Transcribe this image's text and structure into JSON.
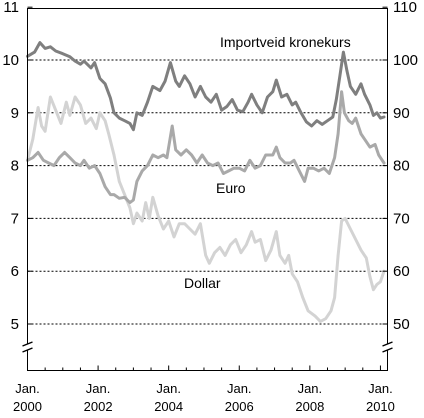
{
  "chart_data": {
    "type": "line",
    "x_unit": "year",
    "xlim": [
      2000.0,
      2010.2
    ],
    "x_ticks": [
      {
        "year": 2000,
        "line1": "Jan.",
        "line2": "2000"
      },
      {
        "year": 2002,
        "line1": "Jan.",
        "line2": "2002"
      },
      {
        "year": 2004,
        "line1": "Jan.",
        "line2": "2004"
      },
      {
        "year": 2006,
        "line1": "Jan.",
        "line2": "2006"
      },
      {
        "year": 2008,
        "line1": "Jan.",
        "line2": "2008"
      },
      {
        "year": 2010,
        "line1": "Jan.",
        "line2": "2010"
      }
    ],
    "y_left": {
      "ticks": [
        5,
        6,
        7,
        8,
        9,
        10,
        11
      ],
      "ylim": [
        5,
        11
      ]
    },
    "y_right": {
      "ticks": [
        50,
        60,
        70,
        80,
        90,
        100,
        110
      ],
      "ylim": [
        50,
        110
      ]
    },
    "grid_values": [
      5,
      6,
      7,
      8,
      9,
      10
    ],
    "axis_break": true,
    "series": [
      {
        "name": "Importveid kronekurs",
        "axis": "right",
        "color": "#7f7f7f",
        "points": [
          [
            2000.0,
            100.7
          ],
          [
            2000.2,
            101.5
          ],
          [
            2000.35,
            103.3
          ],
          [
            2000.5,
            102.2
          ],
          [
            2000.65,
            102.5
          ],
          [
            2000.8,
            101.7
          ],
          [
            2001.0,
            101.2
          ],
          [
            2001.2,
            100.6
          ],
          [
            2001.35,
            99.8
          ],
          [
            2001.5,
            99.2
          ],
          [
            2001.6,
            99.8
          ],
          [
            2001.8,
            98.5
          ],
          [
            2001.9,
            99.5
          ],
          [
            2002.05,
            96.5
          ],
          [
            2002.2,
            95.5
          ],
          [
            2002.35,
            92.8
          ],
          [
            2002.45,
            90.0
          ],
          [
            2002.6,
            89.0
          ],
          [
            2002.75,
            88.5
          ],
          [
            2002.9,
            88.0
          ],
          [
            2003.0,
            86.8
          ],
          [
            2003.1,
            90.0
          ],
          [
            2003.25,
            89.5
          ],
          [
            2003.4,
            92.0
          ],
          [
            2003.55,
            95.0
          ],
          [
            2003.75,
            94.2
          ],
          [
            2003.9,
            96.0
          ],
          [
            2004.05,
            99.5
          ],
          [
            2004.2,
            96.0
          ],
          [
            2004.3,
            95.0
          ],
          [
            2004.45,
            97.0
          ],
          [
            2004.6,
            95.5
          ],
          [
            2004.75,
            93.0
          ],
          [
            2004.9,
            95.0
          ],
          [
            2005.05,
            93.0
          ],
          [
            2005.2,
            92.0
          ],
          [
            2005.35,
            93.5
          ],
          [
            2005.5,
            90.5
          ],
          [
            2005.65,
            91.2
          ],
          [
            2005.8,
            92.5
          ],
          [
            2005.95,
            90.5
          ],
          [
            2006.1,
            90.2
          ],
          [
            2006.25,
            92.0
          ],
          [
            2006.35,
            93.5
          ],
          [
            2006.5,
            91.5
          ],
          [
            2006.65,
            90.0
          ],
          [
            2006.8,
            93.0
          ],
          [
            2006.95,
            94.0
          ],
          [
            2007.05,
            96.2
          ],
          [
            2007.2,
            93.0
          ],
          [
            2007.35,
            93.5
          ],
          [
            2007.5,
            91.5
          ],
          [
            2007.6,
            92.0
          ],
          [
            2007.75,
            90.0
          ],
          [
            2007.9,
            88.3
          ],
          [
            2008.05,
            87.5
          ],
          [
            2008.2,
            88.5
          ],
          [
            2008.35,
            87.8
          ],
          [
            2008.5,
            88.5
          ],
          [
            2008.65,
            89.2
          ],
          [
            2008.75,
            92.5
          ],
          [
            2008.85,
            97.0
          ],
          [
            2008.95,
            101.5
          ],
          [
            2009.05,
            98.0
          ],
          [
            2009.15,
            95.0
          ],
          [
            2009.3,
            93.5
          ],
          [
            2009.45,
            95.5
          ],
          [
            2009.55,
            93.5
          ],
          [
            2009.7,
            91.5
          ],
          [
            2009.8,
            89.5
          ],
          [
            2009.9,
            90.0
          ],
          [
            2010.0,
            89.0
          ],
          [
            2010.1,
            89.2
          ]
        ]
      },
      {
        "name": "Euro",
        "axis": "left",
        "color": "#a9a9a9",
        "points": [
          [
            2000.0,
            8.1
          ],
          [
            2000.15,
            8.15
          ],
          [
            2000.3,
            8.25
          ],
          [
            2000.45,
            8.1
          ],
          [
            2000.6,
            8.05
          ],
          [
            2000.75,
            8.0
          ],
          [
            2000.9,
            8.15
          ],
          [
            2001.05,
            8.25
          ],
          [
            2001.2,
            8.15
          ],
          [
            2001.35,
            8.05
          ],
          [
            2001.5,
            8.0
          ],
          [
            2001.6,
            8.1
          ],
          [
            2001.75,
            7.95
          ],
          [
            2001.9,
            8.0
          ],
          [
            2002.05,
            7.85
          ],
          [
            2002.2,
            7.6
          ],
          [
            2002.35,
            7.45
          ],
          [
            2002.45,
            7.45
          ],
          [
            2002.6,
            7.38
          ],
          [
            2002.75,
            7.4
          ],
          [
            2002.9,
            7.3
          ],
          [
            2003.0,
            7.35
          ],
          [
            2003.1,
            7.7
          ],
          [
            2003.25,
            7.9
          ],
          [
            2003.4,
            8.0
          ],
          [
            2003.55,
            8.2
          ],
          [
            2003.7,
            8.15
          ],
          [
            2003.85,
            8.2
          ],
          [
            2003.95,
            8.15
          ],
          [
            2004.1,
            8.75
          ],
          [
            2004.2,
            8.3
          ],
          [
            2004.35,
            8.2
          ],
          [
            2004.5,
            8.3
          ],
          [
            2004.65,
            8.2
          ],
          [
            2004.8,
            8.05
          ],
          [
            2004.95,
            8.2
          ],
          [
            2005.1,
            8.05
          ],
          [
            2005.25,
            8.0
          ],
          [
            2005.4,
            8.05
          ],
          [
            2005.55,
            7.85
          ],
          [
            2005.7,
            7.9
          ],
          [
            2005.85,
            7.95
          ],
          [
            2006.0,
            7.95
          ],
          [
            2006.15,
            7.9
          ],
          [
            2006.3,
            8.1
          ],
          [
            2006.45,
            7.95
          ],
          [
            2006.6,
            8.0
          ],
          [
            2006.75,
            8.2
          ],
          [
            2006.95,
            8.2
          ],
          [
            2007.05,
            8.35
          ],
          [
            2007.15,
            8.15
          ],
          [
            2007.3,
            8.05
          ],
          [
            2007.45,
            8.05
          ],
          [
            2007.55,
            8.1
          ],
          [
            2007.7,
            7.9
          ],
          [
            2007.85,
            7.7
          ],
          [
            2007.95,
            7.95
          ],
          [
            2008.1,
            7.95
          ],
          [
            2008.25,
            7.9
          ],
          [
            2008.4,
            7.95
          ],
          [
            2008.55,
            7.85
          ],
          [
            2008.7,
            8.15
          ],
          [
            2008.8,
            8.6
          ],
          [
            2008.9,
            9.4
          ],
          [
            2008.98,
            9.0
          ],
          [
            2009.1,
            8.85
          ],
          [
            2009.2,
            8.8
          ],
          [
            2009.3,
            8.9
          ],
          [
            2009.45,
            8.6
          ],
          [
            2009.55,
            8.5
          ],
          [
            2009.7,
            8.35
          ],
          [
            2009.85,
            8.4
          ],
          [
            2009.95,
            8.2
          ],
          [
            2010.1,
            8.05
          ]
        ]
      },
      {
        "name": "Dollar",
        "axis": "left",
        "color": "#d3d3d3",
        "points": [
          [
            2000.0,
            8.1
          ],
          [
            2000.15,
            8.5
          ],
          [
            2000.3,
            9.1
          ],
          [
            2000.4,
            8.75
          ],
          [
            2000.5,
            8.65
          ],
          [
            2000.65,
            9.3
          ],
          [
            2000.8,
            9.05
          ],
          [
            2000.95,
            8.8
          ],
          [
            2001.1,
            9.2
          ],
          [
            2001.2,
            8.95
          ],
          [
            2001.35,
            9.3
          ],
          [
            2001.5,
            9.15
          ],
          [
            2001.65,
            8.8
          ],
          [
            2001.8,
            8.9
          ],
          [
            2001.95,
            8.7
          ],
          [
            2002.05,
            9.0
          ],
          [
            2002.2,
            8.85
          ],
          [
            2002.3,
            8.6
          ],
          [
            2002.45,
            8.2
          ],
          [
            2002.6,
            7.7
          ],
          [
            2002.75,
            7.45
          ],
          [
            2002.9,
            7.2
          ],
          [
            2003.0,
            6.9
          ],
          [
            2003.1,
            7.1
          ],
          [
            2003.25,
            6.95
          ],
          [
            2003.35,
            7.3
          ],
          [
            2003.45,
            7.0
          ],
          [
            2003.55,
            7.4
          ],
          [
            2003.7,
            7.05
          ],
          [
            2003.85,
            6.8
          ],
          [
            2004.0,
            6.95
          ],
          [
            2004.15,
            6.65
          ],
          [
            2004.3,
            6.9
          ],
          [
            2004.45,
            6.9
          ],
          [
            2004.6,
            6.8
          ],
          [
            2004.75,
            6.7
          ],
          [
            2004.9,
            6.9
          ],
          [
            2005.05,
            6.3
          ],
          [
            2005.15,
            6.15
          ],
          [
            2005.3,
            6.35
          ],
          [
            2005.45,
            6.45
          ],
          [
            2005.6,
            6.3
          ],
          [
            2005.75,
            6.5
          ],
          [
            2005.9,
            6.6
          ],
          [
            2006.05,
            6.35
          ],
          [
            2006.2,
            6.5
          ],
          [
            2006.35,
            6.75
          ],
          [
            2006.45,
            6.55
          ],
          [
            2006.6,
            6.6
          ],
          [
            2006.75,
            6.2
          ],
          [
            2006.9,
            6.4
          ],
          [
            2007.05,
            6.75
          ],
          [
            2007.15,
            6.3
          ],
          [
            2007.3,
            6.15
          ],
          [
            2007.4,
            6.3
          ],
          [
            2007.5,
            5.95
          ],
          [
            2007.65,
            5.8
          ],
          [
            2007.8,
            5.5
          ],
          [
            2007.95,
            5.25
          ],
          [
            2008.15,
            5.15
          ],
          [
            2008.3,
            5.05
          ],
          [
            2008.45,
            5.1
          ],
          [
            2008.6,
            5.25
          ],
          [
            2008.7,
            5.5
          ],
          [
            2008.8,
            6.3
          ],
          [
            2008.9,
            6.95
          ],
          [
            2009.0,
            7.0
          ],
          [
            2009.15,
            6.8
          ],
          [
            2009.3,
            6.6
          ],
          [
            2009.45,
            6.4
          ],
          [
            2009.6,
            6.25
          ],
          [
            2009.7,
            5.9
          ],
          [
            2009.8,
            5.65
          ],
          [
            2009.9,
            5.75
          ],
          [
            2010.0,
            5.8
          ],
          [
            2010.1,
            6.0
          ]
        ]
      }
    ],
    "labels": {
      "import": "Importveid kronekurs",
      "euro": "Euro",
      "dollar": "Dollar"
    }
  }
}
